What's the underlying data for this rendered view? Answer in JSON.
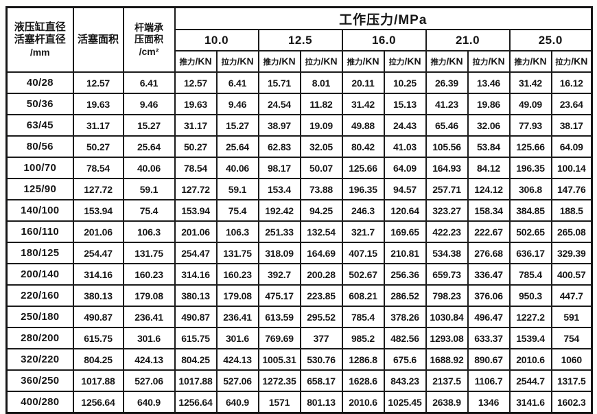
{
  "table": {
    "corner_col1_lines": [
      "液压缸直径",
      "活塞杆直径",
      "/mm"
    ],
    "corner_col2": "活塞面积",
    "corner_col3_lines": [
      "杆端承",
      "压面积",
      "/cm²"
    ],
    "pressure_title": "工作压力/MPa",
    "pressures": [
      "10.0",
      "12.5",
      "16.0",
      "21.0",
      "25.0"
    ],
    "push_label_cn": "推力",
    "pull_label_cn": "拉力",
    "force_unit": "/KN",
    "rows": [
      [
        "40/28",
        "12.57",
        "6.41",
        "12.57",
        "6.41",
        "15.71",
        "8.01",
        "20.11",
        "10.25",
        "26.39",
        "13.46",
        "31.42",
        "16.12"
      ],
      [
        "50/36",
        "19.63",
        "9.46",
        "19.63",
        "9.46",
        "24.54",
        "11.82",
        "31.42",
        "15.13",
        "41.23",
        "19.86",
        "49.09",
        "23.64"
      ],
      [
        "63/45",
        "31.17",
        "15.27",
        "31.17",
        "15.27",
        "38.97",
        "19.09",
        "49.88",
        "24.43",
        "65.46",
        "32.06",
        "77.93",
        "38.17"
      ],
      [
        "80/56",
        "50.27",
        "25.64",
        "50.27",
        "25.64",
        "62.83",
        "32.05",
        "80.42",
        "41.03",
        "105.56",
        "53.84",
        "125.66",
        "64.09"
      ],
      [
        "100/70",
        "78.54",
        "40.06",
        "78.54",
        "40.06",
        "98.17",
        "50.07",
        "125.66",
        "64.09",
        "164.93",
        "84.12",
        "196.35",
        "100.14"
      ],
      [
        "125/90",
        "127.72",
        "59.1",
        "127.72",
        "59.1",
        "153.4",
        "73.88",
        "196.35",
        "94.57",
        "257.71",
        "124.12",
        "306.8",
        "147.76"
      ],
      [
        "140/100",
        "153.94",
        "75.4",
        "153.94",
        "75.4",
        "192.42",
        "94.25",
        "246.3",
        "120.64",
        "323.27",
        "158.34",
        "384.85",
        "188.5"
      ],
      [
        "160/110",
        "201.06",
        "106.3",
        "201.06",
        "106.3",
        "251.33",
        "132.54",
        "321.7",
        "169.65",
        "422.23",
        "222.67",
        "502.65",
        "265.08"
      ],
      [
        "180/125",
        "254.47",
        "131.75",
        "254.47",
        "131.75",
        "318.09",
        "164.69",
        "407.15",
        "210.81",
        "534.38",
        "276.68",
        "636.17",
        "329.39"
      ],
      [
        "200/140",
        "314.16",
        "160.23",
        "314.16",
        "160.23",
        "392.7",
        "200.28",
        "502.67",
        "256.36",
        "659.73",
        "336.47",
        "785.4",
        "400.57"
      ],
      [
        "220/160",
        "380.13",
        "179.08",
        "380.13",
        "179.08",
        "475.17",
        "223.85",
        "608.21",
        "286.52",
        "798.23",
        "376.06",
        "950.3",
        "447.7"
      ],
      [
        "250/180",
        "490.87",
        "236.41",
        "490.87",
        "236.41",
        "613.59",
        "295.52",
        "785.4",
        "378.26",
        "1030.84",
        "496.47",
        "1227.2",
        "591"
      ],
      [
        "280/200",
        "615.75",
        "301.6",
        "615.75",
        "301.6",
        "769.69",
        "377",
        "985.2",
        "482.56",
        "1293.08",
        "633.37",
        "1539.4",
        "754"
      ],
      [
        "320/220",
        "804.25",
        "424.13",
        "804.25",
        "424.13",
        "1005.31",
        "530.76",
        "1286.8",
        "675.6",
        "1688.92",
        "890.67",
        "2010.6",
        "1060"
      ],
      [
        "360/250",
        "1017.88",
        "527.06",
        "1017.88",
        "527.06",
        "1272.35",
        "658.17",
        "1628.6",
        "843.23",
        "2137.5",
        "1106.7",
        "2544.7",
        "1317.5"
      ],
      [
        "400/280",
        "1256.64",
        "640.9",
        "1256.64",
        "640.9",
        "1571",
        "801.13",
        "2010.6",
        "1025.45",
        "2638.9",
        "1346",
        "3141.6",
        "1602.3"
      ]
    ]
  }
}
